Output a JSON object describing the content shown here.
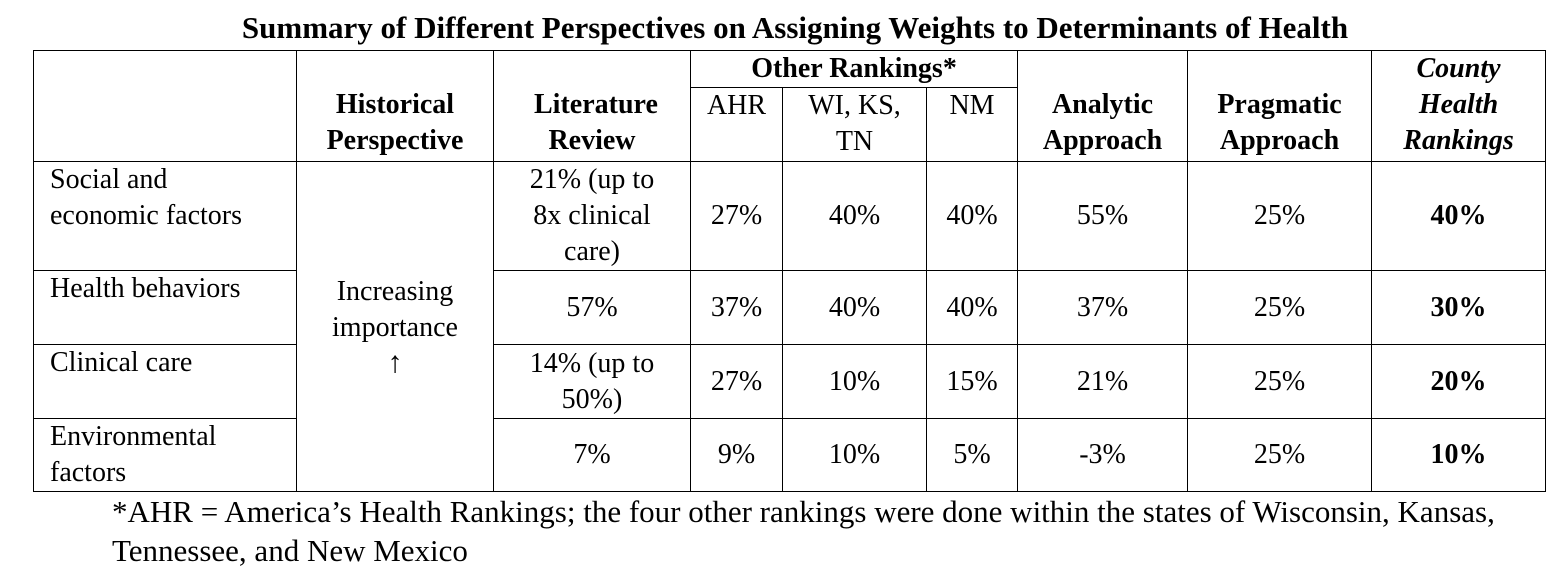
{
  "title": "Summary of Different Perspectives on Assigning Weights to Determinants of Health",
  "headers": {
    "historical": "Historical Perspective",
    "literature": "Literature Review",
    "other_rankings": "Other Rankings*",
    "ahr": "AHR",
    "wi_ks_tn": "WI, KS, TN",
    "nm": "NM",
    "analytic": "Analytic Approach",
    "pragmatic": "Pragmatic Approach",
    "county": "County Health Rankings"
  },
  "historical_cell": {
    "text": "Increasing importance",
    "arrow": "↑"
  },
  "rows": [
    {
      "label": "Social and economic factors",
      "literature": "21% (up to 8x clinical care)",
      "ahr": "27%",
      "wi_ks_tn": "40%",
      "nm": "40%",
      "analytic": "55%",
      "pragmatic": "25%",
      "county": "40%"
    },
    {
      "label": "Health behaviors",
      "literature": "57%",
      "ahr": "37%",
      "wi_ks_tn": "40%",
      "nm": "40%",
      "analytic": "37%",
      "pragmatic": "25%",
      "county": "30%"
    },
    {
      "label": "Clinical care",
      "literature": "14% (up to 50%)",
      "ahr": "27%",
      "wi_ks_tn": "10%",
      "nm": "15%",
      "analytic": "21%",
      "pragmatic": "25%",
      "county": "20%"
    },
    {
      "label": "Environmental factors",
      "literature": "7%",
      "ahr": "9%",
      "wi_ks_tn": "10%",
      "nm": "5%",
      "analytic": "-3%",
      "pragmatic": "25%",
      "county": "10%"
    }
  ],
  "footnote": "*AHR = America’s Health Rankings; the four other rankings were done within the states of Wisconsin, Kansas, Tennessee, and New Mexico"
}
